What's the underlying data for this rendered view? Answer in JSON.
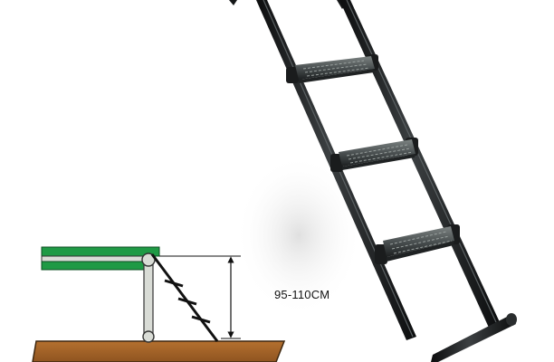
{
  "product": {
    "height_label": "95-110CM",
    "icon": "trampoline-ladder"
  },
  "diagram": {
    "icon": "ladder-installation-diagram",
    "colors": {
      "platform_green": "#1f9a45",
      "ground_brown": "#a8662a",
      "frame_grey": "#d9dcd6",
      "line": "#111111"
    }
  },
  "ladder": {
    "step_count": 3,
    "colors": {
      "rail": "#151718",
      "step": "#3a3f40",
      "step_texture": "#8b9190"
    }
  }
}
